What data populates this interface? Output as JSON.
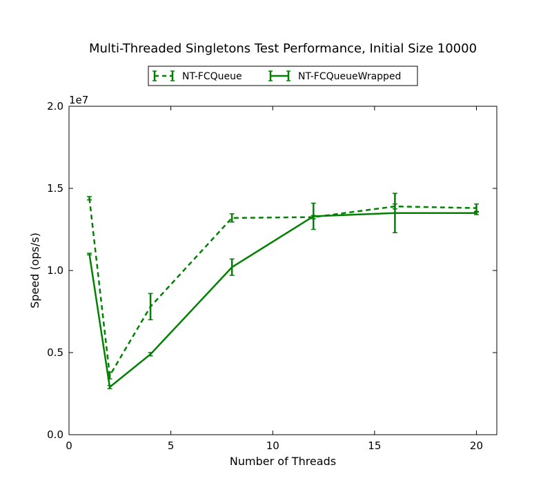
{
  "chart_data": {
    "type": "line",
    "title": "Multi-Threaded Singletons Test Performance, Initial Size 10000",
    "xlabel": "Number of Threads",
    "ylabel": "Speed (ops/s)",
    "y_offset_label": "1e7",
    "xlim": [
      0,
      21
    ],
    "ylim": [
      0,
      2.0
    ],
    "x_ticks": [
      "0",
      "5",
      "10",
      "15",
      "20"
    ],
    "y_ticks": [
      "0.0",
      "0.5",
      "1.0",
      "1.5",
      "2.0"
    ],
    "grid": false,
    "legend_position": "top-center",
    "series": [
      {
        "name": "NT-FCQueue",
        "color": "#008000",
        "line_style": "dashed",
        "points": [
          {
            "x": 1,
            "y": 1.44,
            "err": 0.01
          },
          {
            "x": 2,
            "y": 0.36,
            "err": 0.02
          },
          {
            "x": 4,
            "y": 0.78,
            "err": 0.08
          },
          {
            "x": 8,
            "y": 1.32,
            "err": 0.025
          },
          {
            "x": 12,
            "y": 1.325,
            "err": 0.01
          },
          {
            "x": 16,
            "y": 1.39,
            "err": 0.015
          },
          {
            "x": 20,
            "y": 1.38,
            "err": 0.025
          }
        ]
      },
      {
        "name": "NT-FCQueueWrapped",
        "color": "#008000",
        "line_style": "solid",
        "points": [
          {
            "x": 1,
            "y": 1.1,
            "err": 0.005
          },
          {
            "x": 2,
            "y": 0.29,
            "err": 0.01
          },
          {
            "x": 4,
            "y": 0.49,
            "err": 0.01
          },
          {
            "x": 8,
            "y": 1.02,
            "err": 0.05
          },
          {
            "x": 12,
            "y": 1.33,
            "err": 0.08
          },
          {
            "x": 16,
            "y": 1.35,
            "err": 0.12
          },
          {
            "x": 20,
            "y": 1.35,
            "err": 0.01
          }
        ]
      }
    ]
  }
}
